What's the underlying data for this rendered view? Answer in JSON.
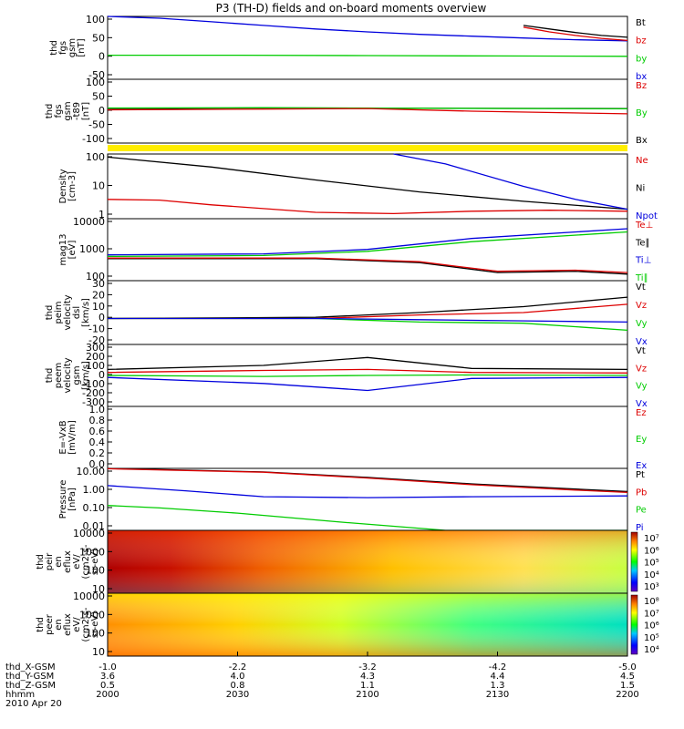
{
  "title": "P3 (TH-D) fields and on-board moments overview",
  "colors": {
    "black": "#000000",
    "red": "#dd0000",
    "green": "#00cc00",
    "blue": "#0000dd",
    "yellow": "#ffee00"
  },
  "chart_data": [
    {
      "type": "line",
      "ylabel": [
        "thd",
        "fgs",
        "gsm",
        "[nT]"
      ],
      "yticks": [
        "100",
        "50",
        "0",
        "-50"
      ],
      "ylim": [
        -70,
        105
      ],
      "legend": [
        {
          "name": "Bt",
          "color": "black"
        },
        {
          "name": "bz",
          "color": "red"
        },
        {
          "name": "by",
          "color": "green"
        },
        {
          "name": "bx",
          "color": "blue"
        }
      ],
      "series": [
        {
          "name": "bx",
          "color": "blue",
          "x": [
            0,
            0.1,
            0.2,
            0.3,
            0.4,
            0.5,
            0.6,
            0.7,
            0.8,
            0.9,
            1
          ],
          "y": [
            108,
            100,
            90,
            80,
            70,
            62,
            55,
            50,
            45,
            40,
            37
          ]
        },
        {
          "name": "Bt",
          "color": "black",
          "x": [
            0.8,
            0.85,
            0.9,
            0.95,
            1
          ],
          "y": [
            80,
            70,
            60,
            52,
            47
          ]
        },
        {
          "name": "bz",
          "color": "red",
          "x": [
            0.8,
            0.85,
            0.9,
            0.95,
            1
          ],
          "y": [
            75,
            62,
            52,
            44,
            38
          ]
        },
        {
          "name": "by",
          "color": "green",
          "x": [
            0,
            0.25,
            0.5,
            0.75,
            1
          ],
          "y": [
            -3,
            -3,
            -4,
            -5,
            -6
          ]
        }
      ]
    },
    {
      "type": "line",
      "ylabel": [
        "thd",
        "fgs",
        "gsm",
        "-t89",
        "[nT]"
      ],
      "yticks": [
        "100",
        "50",
        "0",
        "-50",
        "-100"
      ],
      "ylim": [
        -130,
        110
      ],
      "legend": [
        {
          "name": "Bz",
          "color": "red"
        },
        {
          "name": "By",
          "color": "green"
        },
        {
          "name": "Bx",
          "color": "black"
        }
      ],
      "series": [
        {
          "name": "Bx",
          "color": "black",
          "x": [
            0,
            0.3,
            0.6,
            1
          ],
          "y": [
            0,
            2,
            1,
            0
          ]
        },
        {
          "name": "By",
          "color": "green",
          "x": [
            0,
            0.3,
            0.6,
            1
          ],
          "y": [
            2,
            3,
            1,
            -1
          ]
        },
        {
          "name": "Bz",
          "color": "red",
          "x": [
            0,
            0.3,
            0.5,
            0.7,
            1
          ],
          "y": [
            -5,
            -2,
            0,
            -10,
            -20
          ]
        }
      ]
    },
    {
      "type": "line",
      "scale": "log",
      "ylabel": [
        "Density",
        "[cm-3]"
      ],
      "yticks": [
        "100",
        "10",
        "1"
      ],
      "ylim": [
        0.5,
        200
      ],
      "legend": [
        {
          "name": "Ne",
          "color": "red"
        },
        {
          "name": "Ni",
          "color": "black"
        },
        {
          "name": "Npot",
          "color": "blue"
        }
      ],
      "series": [
        {
          "name": "Ni",
          "color": "black",
          "x": [
            0,
            0.2,
            0.4,
            0.6,
            0.8,
            1
          ],
          "y": [
            150,
            60,
            18,
            6,
            2.5,
            1.2
          ]
        },
        {
          "name": "Ne",
          "color": "red",
          "x": [
            0,
            0.1,
            0.2,
            0.4,
            0.55,
            0.7,
            0.85,
            1
          ],
          "y": [
            3,
            2.8,
            1.8,
            0.9,
            0.8,
            1,
            1.1,
            1.0
          ]
        },
        {
          "name": "Npot",
          "color": "blue",
          "x": [
            0.55,
            0.65,
            0.8,
            0.9,
            1
          ],
          "y": [
            200,
            80,
            10,
            3,
            1.2
          ]
        }
      ]
    },
    {
      "type": "line",
      "scale": "log",
      "ylabel": [
        "mag13",
        "[eV]"
      ],
      "yticks": [
        "10000",
        "1000",
        "100"
      ],
      "ylim": [
        30,
        20000
      ],
      "legend": [
        {
          "name": "Te⊥",
          "color": "red"
        },
        {
          "name": "Te∥",
          "color": "black"
        },
        {
          "name": "Ti⊥",
          "color": "blue"
        },
        {
          "name": "Ti∥",
          "color": "green"
        }
      ],
      "series": [
        {
          "name": "Ti⊥",
          "color": "blue",
          "x": [
            0,
            0.3,
            0.5,
            0.7,
            1
          ],
          "y": [
            450,
            500,
            800,
            2500,
            7000
          ]
        },
        {
          "name": "Ti∥",
          "color": "green",
          "x": [
            0,
            0.3,
            0.5,
            0.7,
            1
          ],
          "y": [
            380,
            420,
            650,
            1800,
            5000
          ]
        },
        {
          "name": "Te∥",
          "color": "black",
          "x": [
            0,
            0.4,
            0.6,
            0.75,
            0.9,
            1
          ],
          "y": [
            300,
            300,
            200,
            70,
            80,
            60
          ]
        },
        {
          "name": "Te⊥",
          "color": "red",
          "x": [
            0,
            0.4,
            0.6,
            0.75,
            0.9,
            1
          ],
          "y": [
            320,
            320,
            220,
            80,
            90,
            70
          ]
        }
      ]
    },
    {
      "type": "line",
      "ylabel": [
        "thd",
        "peim",
        "velocity",
        "dsl",
        "[km/s]"
      ],
      "yticks": [
        "30",
        "20",
        "10",
        "0",
        "-10",
        "-20"
      ],
      "ylim": [
        -22,
        32
      ],
      "legend": [
        {
          "name": "Vt",
          "color": "black"
        },
        {
          "name": "Vz",
          "color": "red"
        },
        {
          "name": "Vy",
          "color": "green"
        },
        {
          "name": "Vx",
          "color": "blue"
        }
      ],
      "series": [
        {
          "name": "Vt",
          "color": "black",
          "x": [
            0,
            0.4,
            0.6,
            0.8,
            1
          ],
          "y": [
            0,
            1,
            5,
            10,
            18
          ]
        },
        {
          "name": "Vz",
          "color": "red",
          "x": [
            0,
            0.4,
            0.6,
            0.8,
            1
          ],
          "y": [
            0,
            0,
            3,
            5,
            12
          ]
        },
        {
          "name": "Vy",
          "color": "green",
          "x": [
            0,
            0.4,
            0.6,
            0.8,
            1
          ],
          "y": [
            0,
            0,
            -3,
            -4,
            -10
          ]
        },
        {
          "name": "Vx",
          "color": "blue",
          "x": [
            0,
            0.4,
            0.6,
            0.8,
            1
          ],
          "y": [
            0,
            0,
            -1,
            -2,
            -3
          ]
        }
      ]
    },
    {
      "type": "line",
      "ylabel": [
        "thd",
        "peem",
        "velocity",
        "gsm",
        "[km/s]"
      ],
      "yticks": [
        "300",
        "200",
        "100",
        "0",
        "-100",
        "-200",
        "-300"
      ],
      "ylim": [
        -310,
        310
      ],
      "legend": [
        {
          "name": "Vt",
          "color": "black"
        },
        {
          "name": "Vz",
          "color": "red"
        },
        {
          "name": "Vy",
          "color": "green"
        },
        {
          "name": "Vx",
          "color": "blue"
        }
      ],
      "series": [
        {
          "name": "Vt",
          "color": "black",
          "x": [
            0,
            0.3,
            0.5,
            0.7,
            1
          ],
          "y": [
            60,
            100,
            180,
            70,
            60
          ]
        },
        {
          "name": "Vz",
          "color": "red",
          "x": [
            0,
            0.3,
            0.5,
            0.7,
            1
          ],
          "y": [
            30,
            50,
            60,
            30,
            25
          ]
        },
        {
          "name": "Vy",
          "color": "green",
          "x": [
            0,
            0.3,
            0.5,
            0.7,
            1
          ],
          "y": [
            0,
            -10,
            0,
            5,
            0
          ]
        },
        {
          "name": "Vx",
          "color": "blue",
          "x": [
            0,
            0.3,
            0.5,
            0.7,
            1
          ],
          "y": [
            -20,
            -80,
            -150,
            -30,
            -20
          ]
        }
      ]
    },
    {
      "type": "line",
      "ylabel": [
        "E=-VxB",
        "[mV/m]"
      ],
      "yticks": [
        "1.0",
        "0.8",
        "0.6",
        "0.4",
        "0.2",
        "0.0"
      ],
      "ylim": [
        0,
        1
      ],
      "legend": [
        {
          "name": "Ez",
          "color": "red"
        },
        {
          "name": "Ey",
          "color": "green"
        },
        {
          "name": "Ex",
          "color": "blue"
        }
      ],
      "series": []
    },
    {
      "type": "line",
      "scale": "log",
      "ylabel": [
        "Pressure",
        "[nPa]"
      ],
      "yticks": [
        "10.00",
        "1.00",
        "0.10",
        "0.01"
      ],
      "ylim": [
        0.01,
        40
      ],
      "legend": [
        {
          "name": "Pt",
          "color": "black"
        },
        {
          "name": "Pb",
          "color": "red"
        },
        {
          "name": "Pe",
          "color": "green"
        },
        {
          "name": "Pi",
          "color": "blue"
        }
      ],
      "series": [
        {
          "name": "Pt",
          "color": "black",
          "x": [
            0,
            0.3,
            0.5,
            0.7,
            0.9,
            1
          ],
          "y": [
            40,
            25,
            12,
            5,
            2.5,
            1.8
          ]
        },
        {
          "name": "Pb",
          "color": "red",
          "x": [
            0,
            0.3,
            0.5,
            0.7,
            0.9,
            1
          ],
          "y": [
            38,
            24,
            11,
            4.5,
            2.2,
            1.6
          ]
        },
        {
          "name": "Pi",
          "color": "blue",
          "x": [
            0,
            0.15,
            0.3,
            0.5,
            0.7,
            1
          ],
          "y": [
            4,
            2,
            0.9,
            0.8,
            0.9,
            1.0
          ]
        },
        {
          "name": "Pe",
          "color": "green",
          "x": [
            0,
            0.1,
            0.25,
            0.45,
            0.65,
            1
          ],
          "y": [
            0.28,
            0.2,
            0.1,
            0.03,
            0.01,
            0.01
          ]
        }
      ]
    },
    {
      "type": "heatmap",
      "ylabel": [
        "thd",
        "peir",
        "en",
        "eflux",
        "eV/",
        "(cm2-s-",
        "sr-eV)"
      ],
      "yticks": [
        "10000",
        "1000",
        "100",
        "10"
      ],
      "colorbar": [
        "10⁷",
        "10⁶",
        "10⁵",
        "10⁴",
        "10³"
      ],
      "scale": "log"
    },
    {
      "type": "heatmap",
      "ylabel": [
        "thd",
        "peer",
        "en",
        "eflux",
        "eV/",
        "(cm2-s-",
        "sr-eV)"
      ],
      "yticks": [
        "10000",
        "1000",
        "100",
        "10"
      ],
      "colorbar": [
        "10⁸",
        "10⁷",
        "10⁶",
        "10⁵",
        "10⁴"
      ],
      "scale": "log"
    }
  ],
  "time_axis": {
    "labels": [
      "thd_X-GSM",
      "thd_Y-GSM",
      "thd_Z-GSM",
      "hhmm",
      "2010 Apr 20"
    ],
    "columns": [
      [
        "-1.0",
        "3.6",
        "0.5",
        "2000"
      ],
      [
        "-2.2",
        "4.0",
        "0.8",
        "2030"
      ],
      [
        "-3.2",
        "4.3",
        "1.1",
        "2100"
      ],
      [
        "-4.2",
        "4.4",
        "1.3",
        "2130"
      ],
      [
        "-5.0",
        "4.5",
        "1.5",
        "2200"
      ]
    ]
  }
}
